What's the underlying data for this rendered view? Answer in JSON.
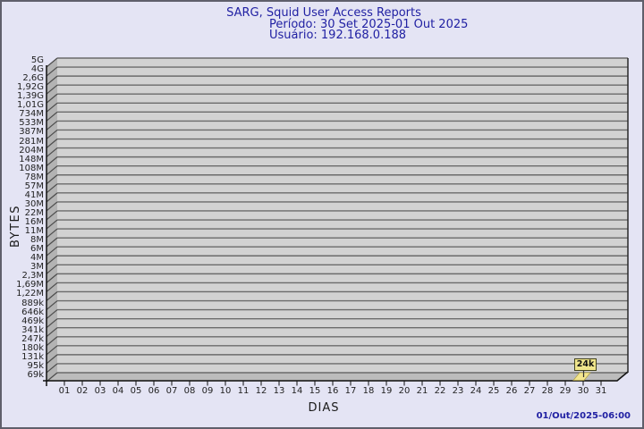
{
  "header": {
    "title": "SARG, Squid User Access Reports",
    "period_line": "Período: 30 Set 2025-01 Out 2025",
    "user_line": "Usuário: 192.168.0.188",
    "text_color": "#2121a3"
  },
  "footer": {
    "timestamp": "01/Out/2025-06:00"
  },
  "chart_data": {
    "type": "bar",
    "title": "SARG, Squid User Access Reports",
    "subtitle": "Período: 30 Set 2025-01 Out 2025",
    "user": "Usuário: 192.168.0.188",
    "xlabel": "DIAS",
    "ylabel": "BYTES",
    "y_scale": "log",
    "y_tick_labels": [
      "5G",
      "4G",
      "2,6G",
      "1,92G",
      "1,39G",
      "1,01G",
      "734M",
      "533M",
      "387M",
      "281M",
      "204M",
      "148M",
      "108M",
      "78M",
      "57M",
      "41M",
      "30M",
      "22M",
      "16M",
      "11M",
      "8M",
      "6M",
      "4M",
      "3M",
      "2,3M",
      "1,69M",
      "1,22M",
      "889k",
      "646k",
      "469k",
      "341k",
      "247k",
      "180k",
      "131k",
      "95k",
      "69k"
    ],
    "x_tick_labels": [
      "01",
      "02",
      "03",
      "04",
      "05",
      "06",
      "07",
      "08",
      "09",
      "10",
      "11",
      "12",
      "13",
      "14",
      "15",
      "16",
      "17",
      "18",
      "19",
      "20",
      "21",
      "22",
      "23",
      "24",
      "25",
      "26",
      "27",
      "28",
      "29",
      "30",
      "31"
    ],
    "categories": [
      1,
      2,
      3,
      4,
      5,
      6,
      7,
      8,
      9,
      10,
      11,
      12,
      13,
      14,
      15,
      16,
      17,
      18,
      19,
      20,
      21,
      22,
      23,
      24,
      25,
      26,
      27,
      28,
      29,
      30,
      31
    ],
    "values": [
      0,
      0,
      0,
      0,
      0,
      0,
      0,
      0,
      0,
      0,
      0,
      0,
      0,
      0,
      0,
      0,
      0,
      0,
      0,
      0,
      0,
      0,
      0,
      0,
      0,
      0,
      0,
      0,
      0,
      24000,
      0
    ],
    "unit": "bytes",
    "annotation": {
      "label": "24k",
      "day": 30,
      "value": 24000
    },
    "legend": null,
    "grid": true,
    "style": "3d-bar",
    "colors": {
      "plot_bg": "#d2d2d2",
      "wall": "#b3b3b3",
      "floor": "#bcbcbc",
      "gridline": "#6b6b6b",
      "axis": "#111111",
      "bar": "#f3e68e",
      "annotation_bg": "#f0e68c",
      "page_bg": "#e4e4f4",
      "title_text": "#2121a3"
    }
  }
}
